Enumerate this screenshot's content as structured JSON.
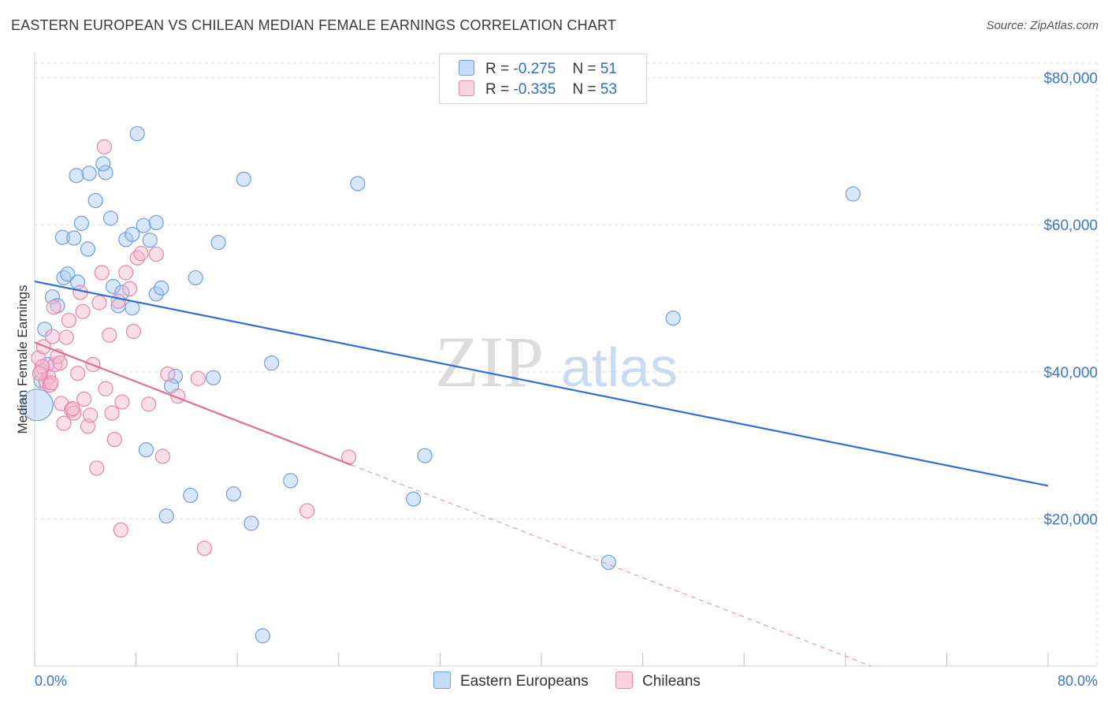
{
  "title": "EASTERN EUROPEAN VS CHILEAN MEDIAN FEMALE EARNINGS CORRELATION CHART",
  "source": "Source: ZipAtlas.com",
  "watermark": {
    "zip": "ZIP",
    "atlas": "atlas"
  },
  "legend": {
    "r_label": "R =",
    "n_label": "N =",
    "series": [
      {
        "name": "Eastern Europeans",
        "r": "-0.275",
        "n": "51",
        "color": "#a9c8f2",
        "stroke": "#6f9fdc"
      },
      {
        "name": "Chileans",
        "r": "-0.335",
        "n": "53",
        "color": "#f6b9cd",
        "stroke": "#e886a8"
      }
    ]
  },
  "chart_data": {
    "type": "scatter",
    "title": "EASTERN EUROPEAN VS CHILEAN MEDIAN FEMALE EARNINGS CORRELATION CHART",
    "xlabel": "",
    "ylabel": "Median Female Earnings",
    "xlim": [
      0,
      80
    ],
    "ylim": [
      0,
      82000
    ],
    "x_tick_labels": [
      "0.0%",
      "80.0%"
    ],
    "y_ticks": [
      20000,
      40000,
      60000,
      80000
    ],
    "y_tick_labels": [
      "$20,000",
      "$40,000",
      "$60,000",
      "$80,000"
    ],
    "grid": true,
    "series": [
      {
        "name": "Eastern Europeans",
        "color": "#6f9fdc",
        "trend": {
          "x0": 0,
          "y0": 52300,
          "x1": 80,
          "y1": 24500,
          "solid_to": 80
        },
        "points": [
          [
            0.2,
            35500,
            "big"
          ],
          [
            0.8,
            45800
          ],
          [
            1.4,
            50200
          ],
          [
            1.8,
            49000
          ],
          [
            2.3,
            52800
          ],
          [
            2.6,
            53300
          ],
          [
            2.2,
            58300
          ],
          [
            3.1,
            58200
          ],
          [
            3.4,
            52200
          ],
          [
            4.2,
            56700
          ],
          [
            3.7,
            60200
          ],
          [
            3.3,
            66700
          ],
          [
            4.3,
            67000
          ],
          [
            4.8,
            63300
          ],
          [
            5.6,
            67100
          ],
          [
            5.4,
            68300
          ],
          [
            6.0,
            60900
          ],
          [
            6.2,
            51600
          ],
          [
            6.6,
            49000
          ],
          [
            6.9,
            50800
          ],
          [
            7.2,
            58000
          ],
          [
            7.7,
            58700
          ],
          [
            8.6,
            59900
          ],
          [
            9.1,
            57900
          ],
          [
            7.7,
            48700
          ],
          [
            8.1,
            72400
          ],
          [
            9.6,
            60300
          ],
          [
            9.6,
            50600
          ],
          [
            10.0,
            51400
          ],
          [
            11.1,
            39400
          ],
          [
            10.8,
            38100
          ],
          [
            12.7,
            52800
          ],
          [
            14.5,
            57600
          ],
          [
            14.1,
            39200
          ],
          [
            16.5,
            66200
          ],
          [
            18.7,
            41200
          ],
          [
            25.5,
            65600
          ],
          [
            8.8,
            29400
          ],
          [
            12.3,
            23200
          ],
          [
            15.7,
            23400
          ],
          [
            10.4,
            20400
          ],
          [
            17.1,
            19400
          ],
          [
            20.2,
            25200
          ],
          [
            29.9,
            22700
          ],
          [
            30.8,
            28600
          ],
          [
            50.4,
            47300
          ],
          [
            64.6,
            64200
          ],
          [
            45.3,
            14100
          ],
          [
            18.0,
            4100
          ],
          [
            1.0,
            41000
          ],
          [
            0.5,
            38800
          ]
        ]
      },
      {
        "name": "Chileans",
        "color": "#e886a8",
        "trend": {
          "x0": 0,
          "y0": 44000,
          "x1": 66,
          "y1": 0,
          "solid_to": 25
        },
        "points": [
          [
            0.3,
            41900
          ],
          [
            0.5,
            40100
          ],
          [
            0.7,
            43400
          ],
          [
            0.9,
            38600
          ],
          [
            1.1,
            39300
          ],
          [
            1.2,
            38200
          ],
          [
            1.4,
            44800
          ],
          [
            1.5,
            48800
          ],
          [
            1.6,
            41000
          ],
          [
            1.8,
            42100
          ],
          [
            2.1,
            35700
          ],
          [
            2.3,
            33000
          ],
          [
            2.5,
            44700
          ],
          [
            2.7,
            47000
          ],
          [
            2.9,
            34800
          ],
          [
            3.1,
            34400
          ],
          [
            3.4,
            39800
          ],
          [
            3.6,
            50800
          ],
          [
            3.8,
            48200
          ],
          [
            3.9,
            36300
          ],
          [
            4.2,
            32600
          ],
          [
            4.4,
            34100
          ],
          [
            4.6,
            41000
          ],
          [
            4.9,
            26900
          ],
          [
            5.1,
            49400
          ],
          [
            5.3,
            53500
          ],
          [
            5.6,
            37700
          ],
          [
            5.9,
            45000
          ],
          [
            6.1,
            34400
          ],
          [
            6.3,
            30800
          ],
          [
            6.6,
            49600
          ],
          [
            6.9,
            35900
          ],
          [
            7.2,
            53500
          ],
          [
            7.5,
            51300
          ],
          [
            7.8,
            45500
          ],
          [
            8.1,
            55500
          ],
          [
            8.4,
            56100
          ],
          [
            9.0,
            35600
          ],
          [
            9.6,
            56000
          ],
          [
            10.1,
            28500
          ],
          [
            10.5,
            39700
          ],
          [
            11.3,
            36700
          ],
          [
            12.9,
            39100
          ],
          [
            13.4,
            16000
          ],
          [
            5.5,
            70600
          ],
          [
            6.8,
            18500
          ],
          [
            21.5,
            21100
          ],
          [
            24.8,
            28400
          ],
          [
            0.6,
            40700
          ],
          [
            1.3,
            38500
          ],
          [
            2.0,
            41200
          ],
          [
            0.4,
            39800
          ],
          [
            3.0,
            35000
          ]
        ]
      }
    ]
  }
}
